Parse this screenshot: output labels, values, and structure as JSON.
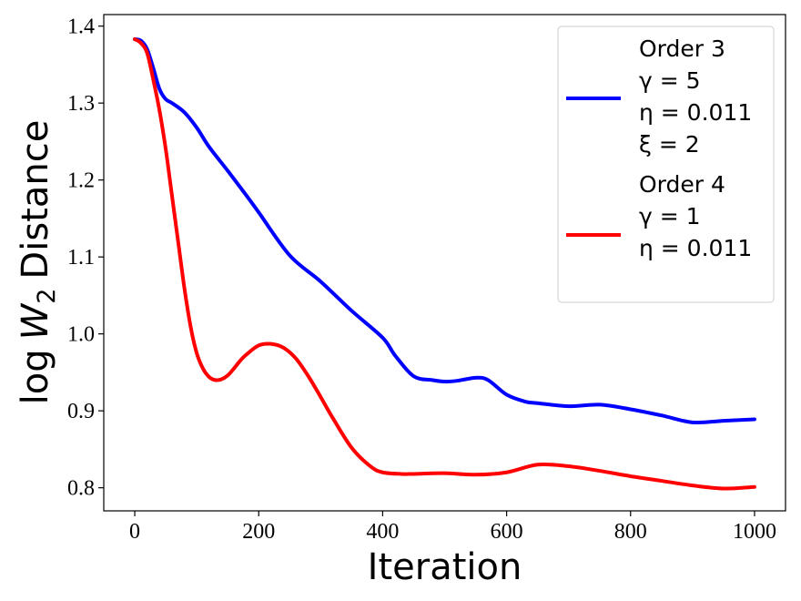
{
  "chart_data": {
    "type": "line",
    "xlabel": "Iteration",
    "ylabel_prefix": "log",
    "ylabel_var": "W",
    "ylabel_sub": "2",
    "ylabel_suffix": "Distance",
    "xlim": [
      -50,
      1050
    ],
    "ylim": [
      0.77,
      1.415
    ],
    "xticks": [
      0,
      200,
      400,
      600,
      800,
      1000
    ],
    "xtick_labels": [
      "0",
      "200",
      "400",
      "600",
      "800",
      "1000"
    ],
    "yticks": [
      0.8,
      0.9,
      1.0,
      1.1,
      1.2,
      1.3,
      1.4
    ],
    "ytick_labels": [
      "0.8",
      "0.9",
      "1.0",
      "1.1",
      "1.2",
      "1.3",
      "1.4"
    ],
    "grid": false,
    "legend_position": "top-right",
    "series": [
      {
        "legend_lines": [
          "Order 3",
          "γ = 5",
          "η = 0.011",
          "ξ = 2"
        ],
        "color": "#0000ff",
        "x": [
          0,
          10,
          20,
          30,
          40,
          50,
          60,
          80,
          100,
          120,
          150,
          180,
          200,
          250,
          300,
          350,
          400,
          420,
          450,
          480,
          500,
          520,
          550,
          570,
          600,
          630,
          650,
          700,
          750,
          800,
          850,
          900,
          950,
          1000
        ],
        "y": [
          1.383,
          1.381,
          1.37,
          1.345,
          1.318,
          1.305,
          1.3,
          1.288,
          1.268,
          1.243,
          1.212,
          1.18,
          1.158,
          1.102,
          1.068,
          1.03,
          0.995,
          0.972,
          0.945,
          0.94,
          0.938,
          0.939,
          0.943,
          0.94,
          0.921,
          0.912,
          0.91,
          0.906,
          0.908,
          0.902,
          0.894,
          0.885,
          0.887,
          0.889
        ]
      },
      {
        "legend_lines": [
          "Order 4",
          "γ = 1",
          "η = 0.011"
        ],
        "color": "#ff0000",
        "x": [
          0,
          10,
          20,
          30,
          40,
          50,
          60,
          70,
          80,
          90,
          100,
          110,
          120,
          130,
          140,
          150,
          160,
          170,
          180,
          200,
          220,
          240,
          260,
          280,
          300,
          320,
          350,
          380,
          400,
          430,
          450,
          500,
          550,
          600,
          650,
          700,
          750,
          800,
          850,
          900,
          950,
          1000
        ],
        "y": [
          1.383,
          1.378,
          1.365,
          1.33,
          1.29,
          1.24,
          1.18,
          1.12,
          1.06,
          1.01,
          0.975,
          0.955,
          0.944,
          0.94,
          0.941,
          0.946,
          0.955,
          0.965,
          0.973,
          0.985,
          0.987,
          0.982,
          0.968,
          0.945,
          0.918,
          0.89,
          0.852,
          0.828,
          0.82,
          0.818,
          0.818,
          0.819,
          0.817,
          0.82,
          0.83,
          0.828,
          0.822,
          0.815,
          0.809,
          0.803,
          0.799,
          0.801
        ]
      }
    ]
  }
}
